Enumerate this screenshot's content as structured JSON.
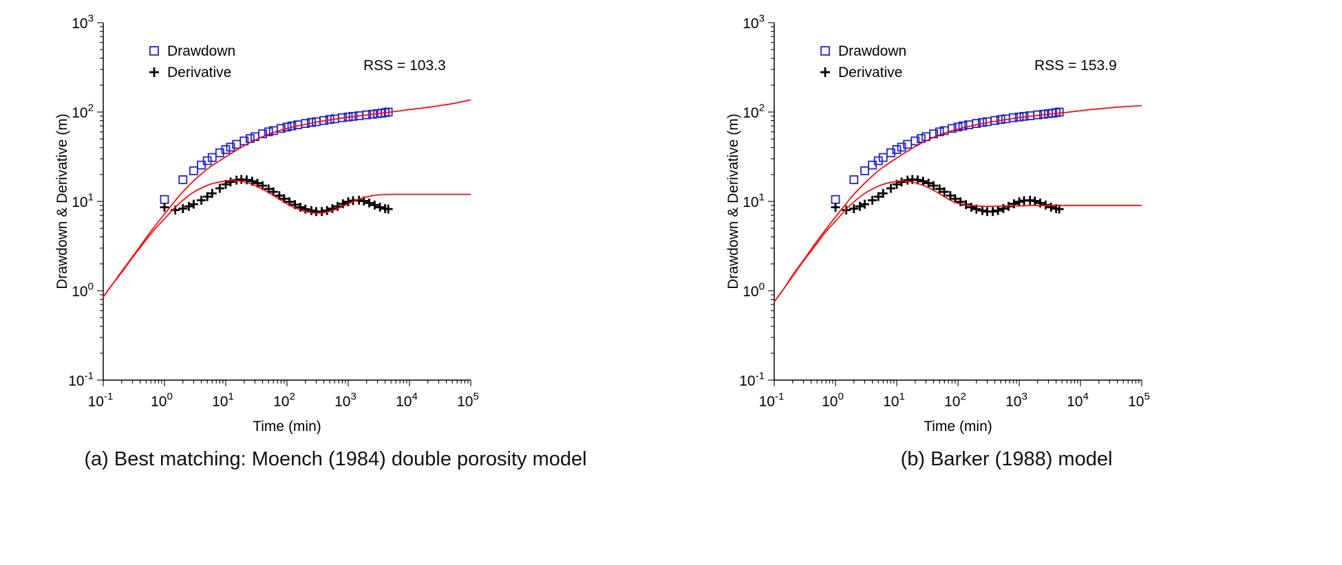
{
  "figure": {
    "background": "#ffffff"
  },
  "colors": {
    "drawdown_marker": "#2222cc",
    "derivative_marker": "#000000",
    "model_curve": "#ff0000",
    "axis": "#000000"
  },
  "chart_data": [
    {
      "type": "scatter",
      "caption": "(a) Best matching: Moench (1984) double porosity model",
      "annotation": "RSS = 103.3",
      "xlabel": "Time (min)",
      "ylabel": "Drawdown & Derivative (m)",
      "xscale": "log",
      "yscale": "log",
      "xlim": [
        0.1,
        100000
      ],
      "ylim": [
        0.1,
        1000
      ],
      "x_tick_exponents": [
        -1,
        0,
        1,
        2,
        3,
        4,
        5
      ],
      "y_tick_exponents": [
        -1,
        0,
        1,
        2,
        3
      ],
      "grid": false,
      "legend_position": "top-left",
      "legend": [
        {
          "label": "Drawdown",
          "marker": "square",
          "color": "#2222cc"
        },
        {
          "label": "Derivative",
          "marker": "plus",
          "color": "#000000"
        }
      ],
      "series": [
        {
          "name": "drawdown-observed",
          "marker": "square",
          "color": "#2222cc",
          "x": [
            1,
            2,
            3,
            4,
            5,
            6,
            8,
            10,
            12,
            15,
            20,
            25,
            30,
            40,
            50,
            60,
            80,
            100,
            120,
            150,
            200,
            250,
            300,
            400,
            500,
            600,
            800,
            1000,
            1200,
            1500,
            2000,
            2500,
            3000,
            3500,
            4000,
            4500
          ],
          "y": [
            10.5,
            17.5,
            22,
            25.5,
            28.5,
            31,
            35,
            38,
            40.5,
            43.5,
            47.5,
            50.5,
            53,
            57,
            60,
            62,
            65.5,
            68,
            70,
            72,
            74.5,
            76.5,
            78,
            80.5,
            82.5,
            84,
            86.5,
            88,
            89.5,
            91,
            93,
            94.5,
            96,
            97,
            98.5,
            100
          ]
        },
        {
          "name": "derivative-observed",
          "marker": "plus",
          "color": "#000000",
          "x": [
            1,
            1.5,
            2,
            2.5,
            3,
            4,
            5,
            6,
            8,
            10,
            12,
            15,
            18,
            22,
            27,
            33,
            40,
            50,
            60,
            75,
            90,
            110,
            135,
            165,
            200,
            250,
            300,
            370,
            450,
            550,
            670,
            820,
            1000,
            1200,
            1500,
            1800,
            2200,
            2700,
            3300,
            4000,
            4500
          ],
          "y": [
            8.6,
            8.0,
            8.3,
            8.8,
            9.3,
            10.3,
            11.3,
            12.3,
            14.0,
            15.5,
            16.5,
            17.3,
            17.6,
            17.4,
            16.8,
            16.0,
            15.0,
            13.8,
            12.8,
            11.6,
            10.7,
            9.9,
            9.2,
            8.6,
            8.2,
            7.9,
            7.7,
            7.7,
            7.9,
            8.3,
            8.8,
            9.4,
            9.9,
            10.2,
            10.3,
            10.1,
            9.6,
            9.1,
            8.6,
            8.3,
            8.2
          ]
        },
        {
          "name": "drawdown-model",
          "line": true,
          "color": "#ff0000",
          "x": [
            0.1,
            0.15,
            0.2,
            0.3,
            0.5,
            0.7,
            1,
            1.5,
            2,
            3,
            5,
            7,
            10,
            15,
            20,
            30,
            50,
            70,
            100,
            150,
            200,
            300,
            500,
            700,
            1000,
            1500,
            2000,
            3000,
            5000,
            7000,
            10000,
            20000,
            50000,
            100000
          ],
          "y": [
            0.85,
            1.25,
            1.65,
            2.4,
            3.9,
            5.3,
            7.2,
            10.2,
            12.8,
            17,
            23,
            27,
            31.5,
            37.5,
            42,
            48.5,
            56.5,
            61,
            65.5,
            70,
            73,
            77,
            81.5,
            84.5,
            87.5,
            90.5,
            92.5,
            96,
            100,
            103,
            106.5,
            113,
            124,
            137
          ]
        },
        {
          "name": "derivative-model",
          "line": true,
          "color": "#ff0000",
          "x": [
            0.1,
            0.15,
            0.2,
            0.3,
            0.5,
            0.7,
            1,
            1.5,
            2,
            3,
            5,
            7,
            10,
            13,
            17,
            22,
            30,
            40,
            55,
            75,
            100,
            140,
            200,
            300,
            450,
            700,
            1000,
            1500,
            2500,
            5000,
            10000,
            100000
          ],
          "y": [
            0.85,
            1.25,
            1.6,
            2.35,
            3.7,
            4.9,
            6.4,
            8.6,
            10.3,
            12.7,
            15.1,
            16.2,
            16.9,
            17.1,
            16.9,
            16.3,
            15.1,
            13.7,
            12.1,
            10.6,
            9.4,
            8.4,
            7.7,
            7.4,
            7.6,
            8.4,
            9.4,
            10.6,
            11.6,
            12,
            12,
            12
          ]
        }
      ]
    },
    {
      "type": "scatter",
      "caption": "(b) Barker (1988) model",
      "annotation": "RSS = 153.9",
      "xlabel": "Time (min)",
      "ylabel": "Drawdown & Derivative (m)",
      "xscale": "log",
      "yscale": "log",
      "xlim": [
        0.1,
        100000
      ],
      "ylim": [
        0.1,
        1000
      ],
      "x_tick_exponents": [
        -1,
        0,
        1,
        2,
        3,
        4,
        5
      ],
      "y_tick_exponents": [
        -1,
        0,
        1,
        2,
        3
      ],
      "grid": false,
      "legend_position": "top-left",
      "legend": [
        {
          "label": "Drawdown",
          "marker": "square",
          "color": "#2222cc"
        },
        {
          "label": "Derivative",
          "marker": "plus",
          "color": "#000000"
        }
      ],
      "series": [
        {
          "name": "drawdown-observed",
          "marker": "square",
          "color": "#2222cc",
          "x": [
            1,
            2,
            3,
            4,
            5,
            6,
            8,
            10,
            12,
            15,
            20,
            25,
            30,
            40,
            50,
            60,
            80,
            100,
            120,
            150,
            200,
            250,
            300,
            400,
            500,
            600,
            800,
            1000,
            1200,
            1500,
            2000,
            2500,
            3000,
            3500,
            4000,
            4500
          ],
          "y": [
            10.5,
            17.5,
            22,
            25.5,
            28.5,
            31,
            35,
            38,
            40.5,
            43.5,
            47.5,
            50.5,
            53,
            57,
            60,
            62,
            65.5,
            68,
            70,
            72,
            74.5,
            76.5,
            78,
            80.5,
            82.5,
            84,
            86.5,
            88,
            89.5,
            91,
            93,
            94.5,
            96,
            97,
            98.5,
            100
          ]
        },
        {
          "name": "derivative-observed",
          "marker": "plus",
          "color": "#000000",
          "x": [
            1,
            1.5,
            2,
            2.5,
            3,
            4,
            5,
            6,
            8,
            10,
            12,
            15,
            18,
            22,
            27,
            33,
            40,
            50,
            60,
            75,
            90,
            110,
            135,
            165,
            200,
            250,
            300,
            370,
            450,
            550,
            670,
            820,
            1000,
            1200,
            1500,
            1800,
            2200,
            2700,
            3300,
            4000,
            4500
          ],
          "y": [
            8.6,
            8.0,
            8.3,
            8.8,
            9.3,
            10.3,
            11.3,
            12.3,
            14.0,
            15.5,
            16.5,
            17.3,
            17.6,
            17.4,
            16.8,
            16.0,
            15.0,
            13.8,
            12.8,
            11.6,
            10.7,
            9.9,
            9.2,
            8.6,
            8.2,
            7.9,
            7.7,
            7.7,
            7.9,
            8.3,
            8.8,
            9.4,
            9.9,
            10.2,
            10.3,
            10.1,
            9.6,
            9.1,
            8.6,
            8.3,
            8.2
          ]
        },
        {
          "name": "drawdown-model",
          "line": true,
          "color": "#ff0000",
          "x": [
            0.1,
            0.15,
            0.2,
            0.3,
            0.5,
            0.7,
            1,
            1.5,
            2,
            3,
            5,
            7,
            10,
            15,
            20,
            30,
            50,
            70,
            100,
            150,
            200,
            300,
            500,
            700,
            1000,
            1500,
            2000,
            3000,
            5000,
            7000,
            10000,
            20000,
            50000,
            100000
          ],
          "y": [
            0.75,
            1.1,
            1.5,
            2.2,
            3.6,
            4.9,
            6.7,
            9.5,
            12,
            16,
            22,
            26,
            30.5,
            36.5,
            41,
            47.5,
            55.5,
            60,
            64.5,
            69,
            72,
            76,
            80.5,
            83.5,
            86.5,
            89.5,
            91.5,
            94.5,
            98,
            100.5,
            103.5,
            108.5,
            114.5,
            118
          ]
        },
        {
          "name": "derivative-model",
          "line": true,
          "color": "#ff0000",
          "x": [
            0.1,
            0.15,
            0.2,
            0.3,
            0.5,
            0.7,
            1,
            1.5,
            2,
            3,
            5,
            7,
            10,
            13,
            17,
            22,
            30,
            40,
            55,
            75,
            100,
            140,
            200,
            300,
            500,
            1000,
            2000,
            10000,
            100000
          ],
          "y": [
            0.75,
            1.1,
            1.45,
            2.15,
            3.4,
            4.6,
            6,
            8.2,
            9.9,
            12.3,
            14.8,
            16,
            16.7,
            16.9,
            16.6,
            15.9,
            14.7,
            13.3,
            11.7,
            10.3,
            9.5,
            9.1,
            8.9,
            8.8,
            8.85,
            8.9,
            9,
            9,
            9
          ]
        }
      ]
    }
  ]
}
